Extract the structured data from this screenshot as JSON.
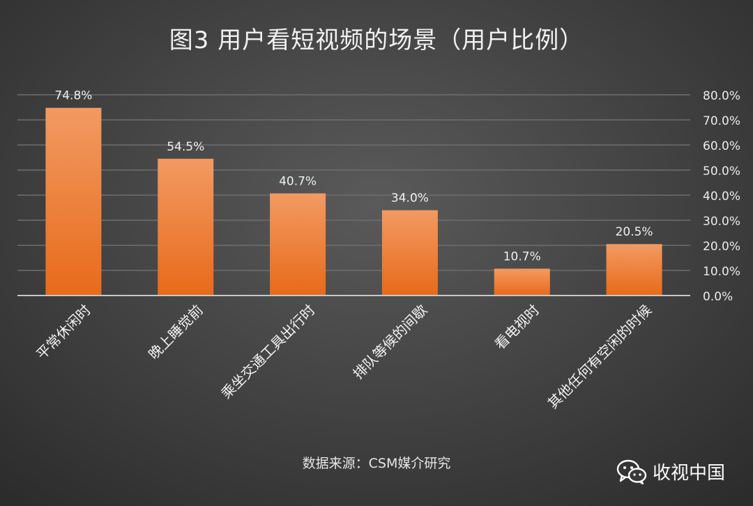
{
  "chart_data": {
    "type": "bar",
    "title": "图3  用户看短视频的场景（用户比例）",
    "categories": [
      "平常休闲时",
      "晚上睡觉前",
      "乘坐交通工具出行时",
      "排队等候的间歇",
      "看电视时",
      "其他任何有空闲的时候"
    ],
    "values": [
      74.8,
      54.5,
      40.7,
      34.0,
      10.7,
      20.5
    ],
    "value_labels": [
      "74.8%",
      "54.5%",
      "40.7%",
      "34.0%",
      "10.7%",
      "20.5%"
    ],
    "y_ticks": [
      "0.0%",
      "10.0%",
      "20.0%",
      "30.0%",
      "40.0%",
      "50.0%",
      "60.0%",
      "70.0%",
      "80.0%"
    ],
    "ylim": [
      0,
      80
    ],
    "y_axis_side": "right",
    "grid": true,
    "bar_color_top": "#f29a62",
    "bar_color_bottom": "#e86a1a",
    "xlabel": "",
    "ylabel": ""
  },
  "footer": {
    "source": "数据来源：CSM媒介研究",
    "watermark_text": "收视中国",
    "watermark_icon": "wechat-icon"
  }
}
